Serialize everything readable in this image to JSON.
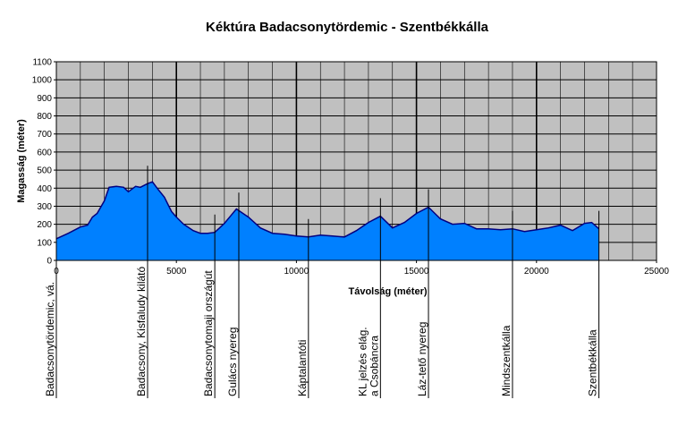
{
  "chart_data": {
    "type": "area",
    "title": "Kéktúra Badacsonytördemic - Szentbékkálla",
    "xlabel": "Távolság (méter)",
    "ylabel": "Magasság (méter)",
    "xlim": [
      0,
      25000
    ],
    "ylim": [
      0,
      1100
    ],
    "x_ticks": [
      "0",
      "5000",
      "10000",
      "15000",
      "20000",
      "25000"
    ],
    "y_ticks": [
      "0",
      "100",
      "200",
      "300",
      "400",
      "500",
      "600",
      "700",
      "800",
      "900",
      "1000",
      "1100"
    ],
    "grid": true,
    "legend": "none",
    "colors": {
      "plot_bg": "#c0c0c0",
      "fill": "#0080ff",
      "line": "#000080",
      "grid": "#000000"
    },
    "series": [
      {
        "x": [
          0,
          500,
          1000,
          1300,
          1500,
          1700,
          2000,
          2200,
          2500,
          2800,
          3000,
          3300,
          3500,
          3800,
          4000,
          4200,
          4500,
          4800,
          5000,
          5300,
          5700,
          6000,
          6300,
          6600,
          7000,
          7500,
          8000,
          8500,
          9000,
          9500,
          10000,
          10500,
          11000,
          11500,
          12000,
          12500,
          13000,
          13500,
          14000,
          14500,
          15000,
          15500,
          16000,
          16500,
          17000,
          17500,
          18000,
          18500,
          19000,
          19500,
          20000,
          20500,
          21000,
          21500,
          22000,
          22300,
          22600
        ],
        "values": [
          120,
          150,
          185,
          195,
          240,
          260,
          330,
          405,
          410,
          405,
          380,
          410,
          405,
          425,
          435,
          400,
          350,
          270,
          240,
          200,
          165,
          150,
          150,
          155,
          205,
          285,
          240,
          180,
          150,
          145,
          135,
          130,
          140,
          135,
          130,
          165,
          210,
          245,
          180,
          210,
          260,
          295,
          230,
          200,
          205,
          175,
          175,
          170,
          175,
          160,
          170,
          180,
          195,
          165,
          205,
          210,
          175
        ]
      }
    ],
    "waypoints": [
      {
        "x": 0,
        "label": "Badacsonytördemic, vá."
      },
      {
        "x": 3800,
        "label": "Badacsony, Kisfaludy kilátó"
      },
      {
        "x": 6600,
        "label": "Badacsonytomaji országút"
      },
      {
        "x": 7600,
        "label": "Gulács nyereg"
      },
      {
        "x": 10500,
        "label": "Káptalantóti"
      },
      {
        "x": 13500,
        "label": [
          "KL jelzés elág.",
          "a Csobáncra"
        ]
      },
      {
        "x": 15500,
        "label": "Láz-tető nyereg"
      },
      {
        "x": 19000,
        "label": "Mindszentkálla"
      },
      {
        "x": 22600,
        "label": "Szentbékkálla"
      }
    ]
  }
}
